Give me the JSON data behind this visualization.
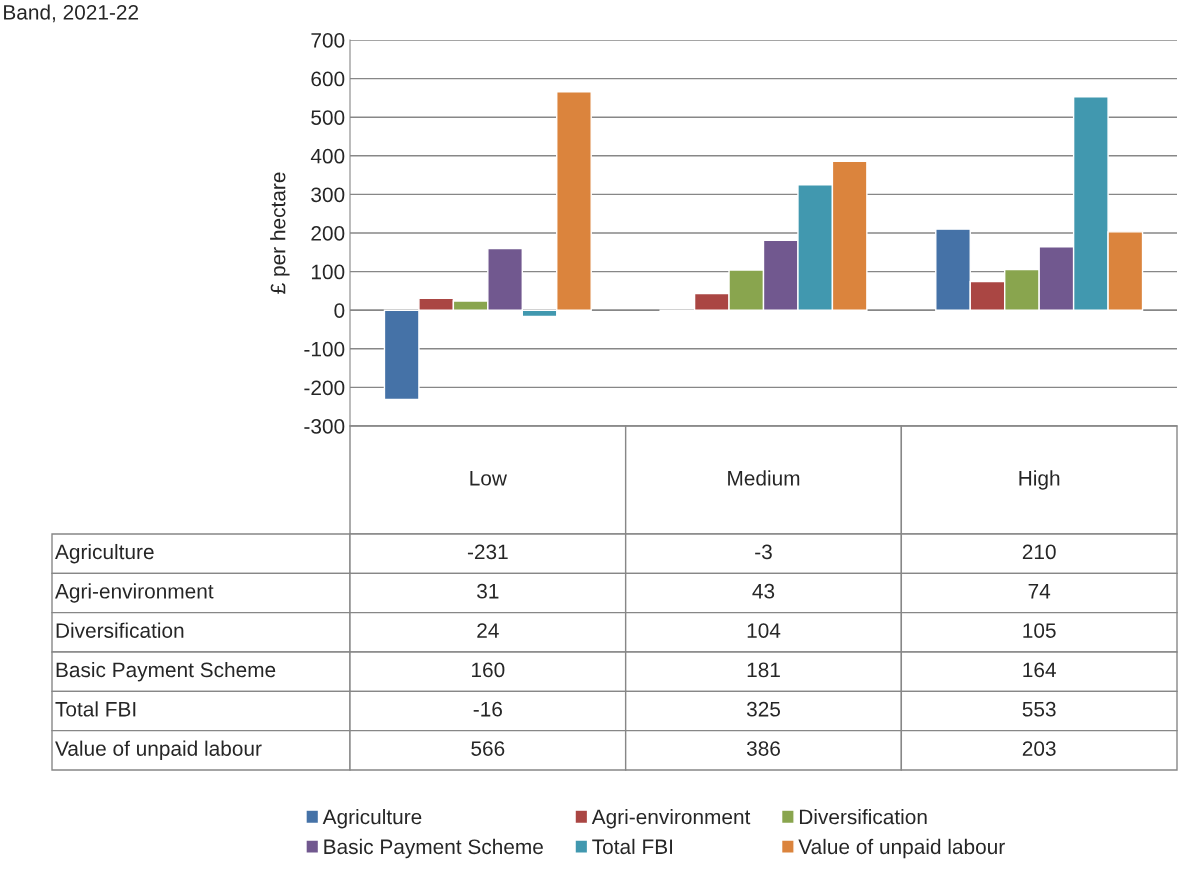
{
  "chart_data": {
    "type": "bar",
    "title": "Band, 2021-22",
    "ylabel": "£ per hectare",
    "categories": [
      "Low",
      "Medium",
      "High"
    ],
    "series": [
      {
        "name": "Agriculture",
        "color": "#4572a7",
        "values": [
          -231,
          -3,
          210
        ]
      },
      {
        "name": "Agri-environment",
        "color": "#aa4643",
        "values": [
          31,
          43,
          74
        ]
      },
      {
        "name": "Diversification",
        "color": "#89a54e",
        "values": [
          24,
          104,
          105
        ]
      },
      {
        "name": "Basic Payment Scheme",
        "color": "#71588f",
        "values": [
          160,
          181,
          164
        ]
      },
      {
        "name": "Total FBI",
        "color": "#4198af",
        "values": [
          -16,
          325,
          553
        ]
      },
      {
        "name": "Value of unpaid labour",
        "color": "#db843d",
        "values": [
          566,
          386,
          203
        ]
      }
    ],
    "ylim": [
      -300,
      700
    ],
    "yticks": [
      -300,
      -200,
      -100,
      0,
      100,
      200,
      300,
      400,
      500,
      600,
      700
    ],
    "grid": "y",
    "legend": "bottom",
    "data_labels": true
  }
}
